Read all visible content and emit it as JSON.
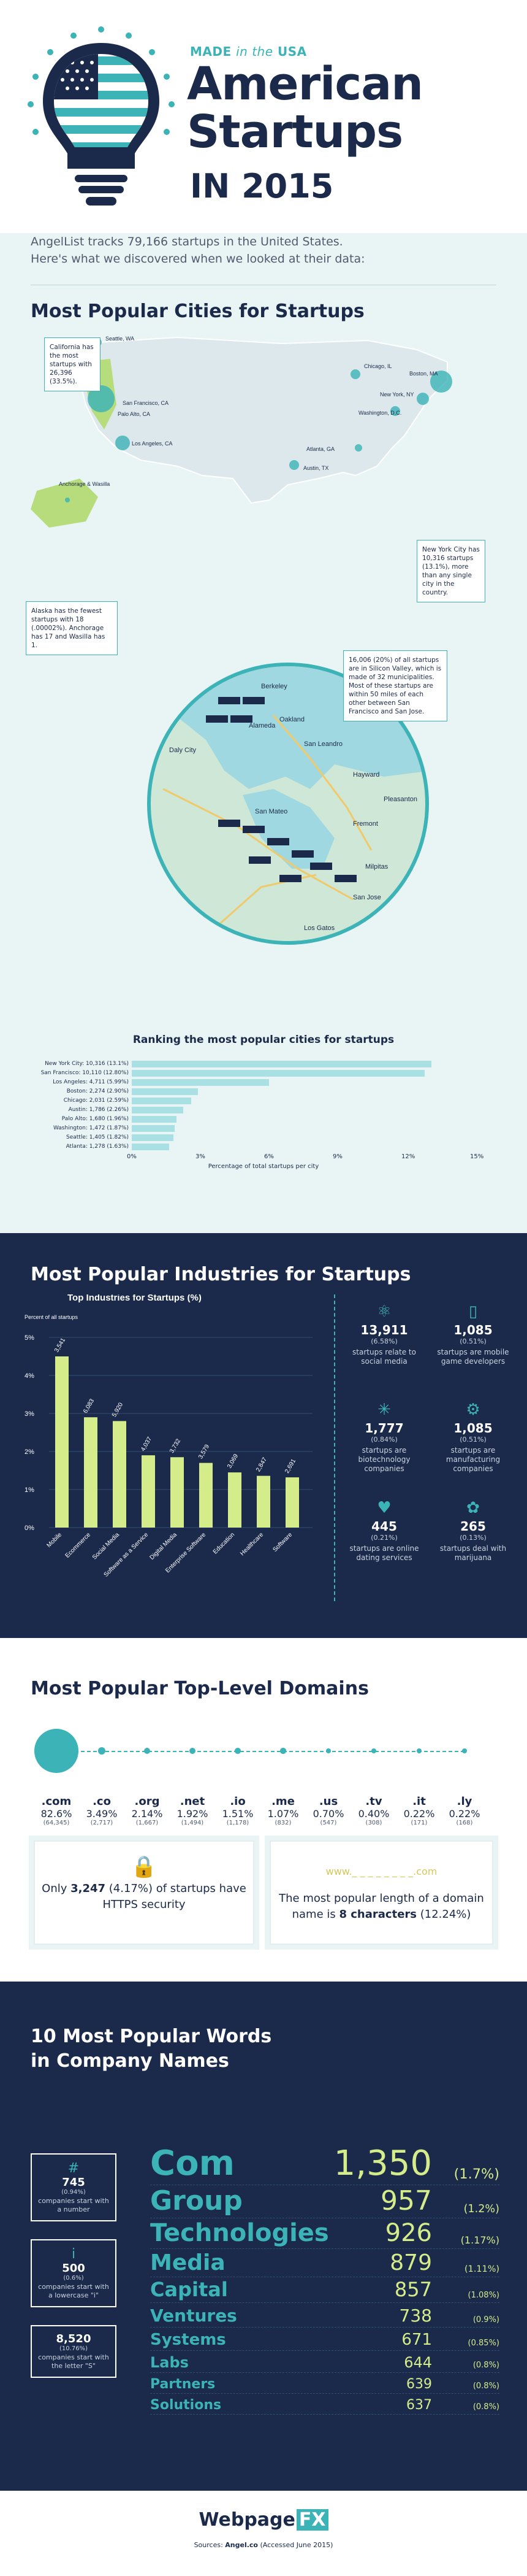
{
  "header": {
    "made": "MADE",
    "in_the": "in the",
    "usa": "USA",
    "title_line1": "American",
    "title_line2": "Startups",
    "title_line3": "IN 2015"
  },
  "intro": {
    "line1": "AngelList tracks 79,166 startups in the United States.",
    "line2": "Here's what we discovered when we looked at their data:"
  },
  "cities": {
    "heading": "Most Popular Cities for Startups",
    "map_labels": [
      "Seattle, WA",
      "San Francisco, CA",
      "Palo Alto, CA",
      "Los Angeles, CA",
      "Anchorage & Wasilla",
      "Chicago, IL",
      "Boston, MA",
      "New York, NY",
      "Washington, D.C.",
      "Atlanta, GA",
      "Austin, TX"
    ],
    "callout_ca": "California has the most startups with 26,396 (33.5%).",
    "callout_ak": "Alaska has the fewest startups with 18 (.00002%). Anchorage has 17 and Wasilla has 1.",
    "callout_ny": "New York City has 10,316 startups (13.1%), more than any single city in the country.",
    "callout_sv": "16,006 (20%) of all startups are in Silicon Valley, which is made of 32 municipalities. Most of these startups are within 50 miles of each other between San Francisco and San Jose.",
    "sv_places": [
      "Berkeley",
      "Oakland",
      "San Leandro",
      "Hayward",
      "Daly City",
      "San Mateo",
      "Fremont",
      "Milpitas",
      "Pleasanton",
      "San Jose",
      "Los Gatos",
      "Alameda"
    ]
  },
  "ranking": {
    "title": "Ranking the most popular cities for startups",
    "xlabel": "Percentage of total startups per city",
    "ticks": [
      "0%",
      "3%",
      "6%",
      "9%",
      "12%",
      "15%"
    ]
  },
  "chart_data": [
    {
      "type": "bar",
      "title": "Ranking the most popular cities for startups",
      "xlabel": "Percentage of total startups per city",
      "xlim": [
        0,
        15
      ],
      "categories": [
        "New York City: 10,316 (13.1%)",
        "San Francisco: 10,110 (12.80%)",
        "Los Angeles: 4,711 (5.99%)",
        "Boston: 2,274 (2.90%)",
        "Chicago: 2,031 (2.59%)",
        "Austin: 1,786 (2.26%)",
        "Palo Alto: 1,680 (1.96%)",
        "Washington: 1,472 (1.87%)",
        "Seattle: 1,405 (1.82%)",
        "Atlanta: 1,278 (1.63%)"
      ],
      "values": [
        13.1,
        12.8,
        5.99,
        2.9,
        2.59,
        2.26,
        1.96,
        1.87,
        1.82,
        1.63
      ]
    },
    {
      "type": "bar",
      "title": "Top Industries for Startups (%)",
      "ylabel": "Percent of all startups",
      "ylim": [
        0,
        5
      ],
      "categories": [
        "Mobile",
        "Ecommerce",
        "Social Media",
        "Software as a Service",
        "Digital Media",
        "Enterprise Software",
        "Education",
        "Healthcare",
        "Software"
      ],
      "values": [
        4.5,
        2.9,
        2.8,
        1.9,
        1.85,
        1.7,
        1.45,
        1.36,
        1.32
      ],
      "data_labels": [
        "3,541",
        "6,083",
        "5,920",
        "4,037",
        "3,732",
        "3,579",
        "3,069",
        "2,847",
        "2,691"
      ]
    },
    {
      "type": "bar",
      "title": "Most Popular Top-Level Domains",
      "categories": [
        ".com",
        ".co",
        ".org",
        ".net",
        ".io",
        ".me",
        ".us",
        ".tv",
        ".it",
        ".ly"
      ],
      "values": [
        82.6,
        3.49,
        2.14,
        1.92,
        1.51,
        1.07,
        0.7,
        0.4,
        0.22,
        0.22
      ]
    }
  ],
  "industries": {
    "heading": "Most Popular Industries for Startups",
    "chart_title": "Top Industries for Startups (%)",
    "ylabel": "Percent of all startups",
    "yticks": [
      "5%",
      "4%",
      "3%",
      "2%",
      "1%",
      "0%"
    ],
    "stats": [
      {
        "icon": "⚛",
        "n": "13,911",
        "p": "(6.58%)",
        "d": "startups relate to social media"
      },
      {
        "icon": "▯",
        "n": "1,085",
        "p": "(0.51%)",
        "d": "startups are mobile game developers"
      },
      {
        "icon": "✳",
        "n": "1,777",
        "p": "(0.84%)",
        "d": "startups are biotechnology companies"
      },
      {
        "icon": "⚙",
        "n": "1,085",
        "p": "(0.51%)",
        "d": "startups are manufacturing companies"
      },
      {
        "icon": "♥",
        "n": "445",
        "p": "(0.21%)",
        "d": "startups are online dating services"
      },
      {
        "icon": "✿",
        "n": "265",
        "p": "(0.13%)",
        "d": "startups deal with marijuana"
      }
    ]
  },
  "domains": {
    "heading": "Most Popular Top-Level Domains",
    "items": [
      {
        "tld": ".com",
        "pct": "82.6%",
        "cnt": "(64,345)"
      },
      {
        "tld": ".co",
        "pct": "3.49%",
        "cnt": "(2,717)"
      },
      {
        "tld": ".org",
        "pct": "2.14%",
        "cnt": "(1,667)"
      },
      {
        "tld": ".net",
        "pct": "1.92%",
        "cnt": "(1,494)"
      },
      {
        "tld": ".io",
        "pct": "1.51%",
        "cnt": "(1,178)"
      },
      {
        "tld": ".me",
        "pct": "1.07%",
        "cnt": "(832)"
      },
      {
        "tld": ".us",
        "pct": "0.70%",
        "cnt": "(547)"
      },
      {
        "tld": ".tv",
        "pct": "0.40%",
        "cnt": "(308)"
      },
      {
        "tld": ".it",
        "pct": "0.22%",
        "cnt": "(171)"
      },
      {
        "tld": ".ly",
        "pct": "0.22%",
        "cnt": "(168)"
      }
    ],
    "https_pre": "Only ",
    "https_num": "3,247",
    "https_post": " (4.17%) of startups have HTTPS security",
    "len_url": "www._ _ _ _ _ _ _ _.com",
    "len_pre": "The most popular length of a domain name is ",
    "len_bold": "8 characters",
    "len_post": " (12.24%)"
  },
  "words": {
    "heading1": "10 Most Popular Words",
    "heading2": "in Company Names",
    "boxes": [
      {
        "icon": "#",
        "n": "745",
        "p": "(0.94%)",
        "d": "companies start with a number"
      },
      {
        "icon": "i",
        "n": "500",
        "p": "(0.6%)",
        "d": "companies start with a lowercase \"i\""
      },
      {
        "icon": "",
        "n": "8,520",
        "p": "(10.76%)",
        "d": "companies start with the letter \"S\""
      }
    ],
    "rows": [
      {
        "w": "Com",
        "c": "1,350",
        "p": "(1.7%)"
      },
      {
        "w": "Group",
        "c": "957",
        "p": "(1.2%)"
      },
      {
        "w": "Technologies",
        "c": "926",
        "p": "(1.17%)"
      },
      {
        "w": "Media",
        "c": "879",
        "p": "(1.11%)"
      },
      {
        "w": "Capital",
        "c": "857",
        "p": "(1.08%)"
      },
      {
        "w": "Ventures",
        "c": "738",
        "p": "(0.9%)"
      },
      {
        "w": "Systems",
        "c": "671",
        "p": "(0.85%)"
      },
      {
        "w": "Labs",
        "c": "644",
        "p": "(0.8%)"
      },
      {
        "w": "Partners",
        "c": "639",
        "p": "(0.8%)"
      },
      {
        "w": "Solutions",
        "c": "637",
        "p": "(0.8%)"
      }
    ]
  },
  "footer": {
    "logo_a": "Webpage",
    "logo_b": "FX",
    "src_pre": "Sources: ",
    "src_bold": "Angel.co",
    "src_post": " (Accessed June 2015)"
  },
  "colors": {
    "navy": "#1b2a4a",
    "teal": "#3bb3b7",
    "lime": "#d5ec8a",
    "light": "#e9f5f5"
  }
}
